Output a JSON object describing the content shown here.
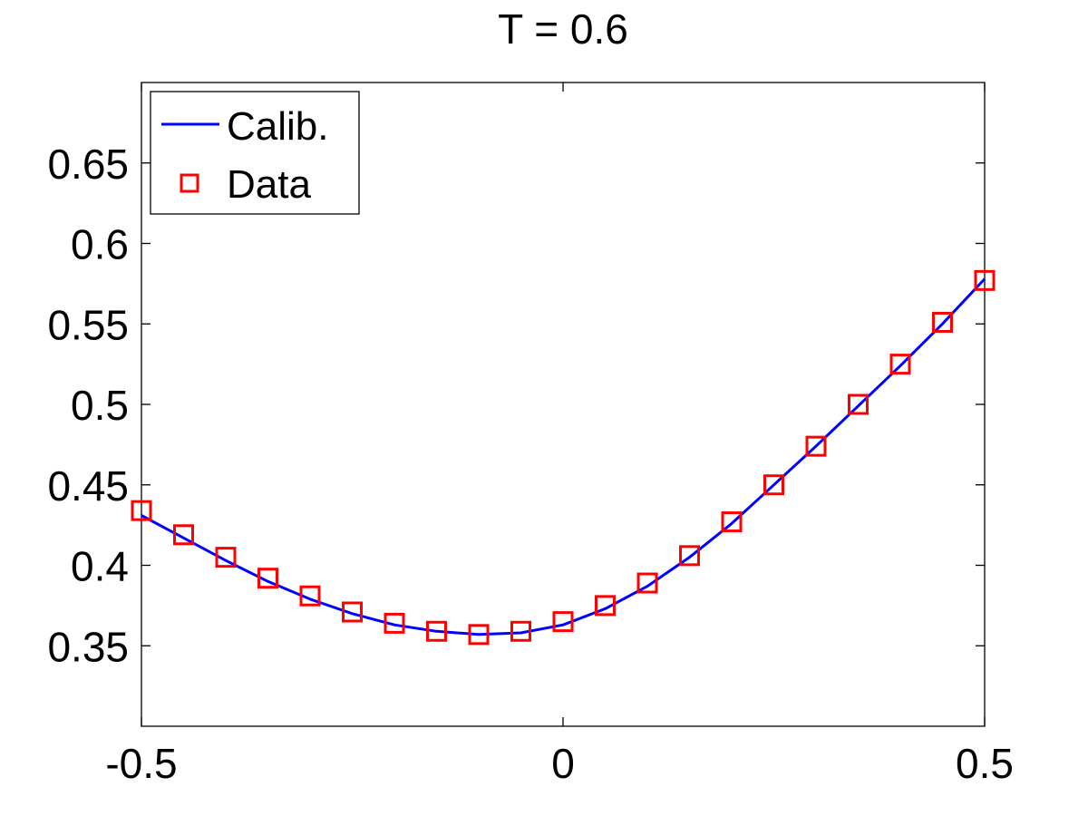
{
  "chart_data": {
    "type": "line",
    "title": "T = 0.6",
    "xlabel": "",
    "ylabel": "",
    "xlim": [
      -0.5,
      0.5
    ],
    "ylim": [
      0.3,
      0.7
    ],
    "grid": false,
    "legend_position": "top-left",
    "x_ticks": [
      -0.5,
      0,
      0.5
    ],
    "x_tick_labels": [
      "-0.5",
      "0",
      "0.5"
    ],
    "y_ticks": [
      0.35,
      0.4,
      0.45,
      0.5,
      0.55,
      0.6,
      0.65
    ],
    "y_tick_labels": [
      "0.35",
      "0.4",
      "0.45",
      "0.5",
      "0.55",
      "0.6",
      "0.65"
    ],
    "series": [
      {
        "name": "Calib.",
        "style": "line",
        "color": "#0000ff",
        "x": [
          -0.5,
          -0.45,
          -0.4,
          -0.35,
          -0.3,
          -0.25,
          -0.2,
          -0.15,
          -0.1,
          -0.05,
          0,
          0.05,
          0.1,
          0.15,
          0.2,
          0.25,
          0.3,
          0.35,
          0.4,
          0.45,
          0.5
        ],
        "y": [
          0.431,
          0.417,
          0.403,
          0.39,
          0.379,
          0.37,
          0.363,
          0.359,
          0.357,
          0.358,
          0.363,
          0.373,
          0.387,
          0.405,
          0.426,
          0.45,
          0.474,
          0.499,
          0.524,
          0.55,
          0.578
        ]
      },
      {
        "name": "Data",
        "style": "marker-square",
        "color": "#ff0000",
        "x": [
          -0.5,
          -0.45,
          -0.4,
          -0.35,
          -0.3,
          -0.25,
          -0.2,
          -0.15,
          -0.1,
          -0.05,
          0,
          0.05,
          0.1,
          0.15,
          0.2,
          0.25,
          0.3,
          0.35,
          0.4,
          0.45,
          0.5
        ],
        "y": [
          0.434,
          0.419,
          0.405,
          0.392,
          0.381,
          0.371,
          0.364,
          0.359,
          0.357,
          0.359,
          0.365,
          0.375,
          0.389,
          0.406,
          0.427,
          0.45,
          0.474,
          0.5,
          0.525,
          0.551,
          0.577
        ]
      }
    ]
  }
}
